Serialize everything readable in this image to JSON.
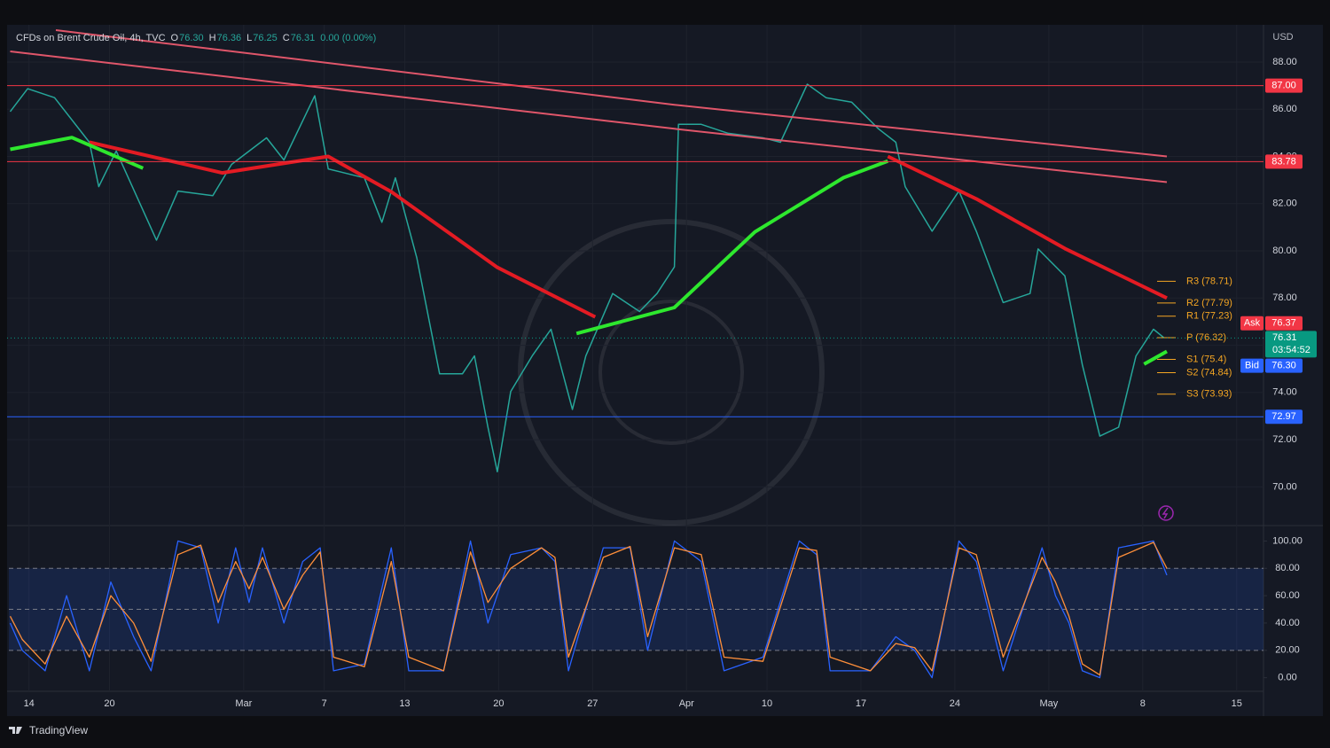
{
  "header": {
    "symbol": "CFDs on Brent Crude Oil, 4h, TVC",
    "ohlc": [
      {
        "key": "O",
        "value": "76.30"
      },
      {
        "key": "H",
        "value": "76.36"
      },
      {
        "key": "L",
        "value": "76.25"
      },
      {
        "key": "C",
        "value": "76.31"
      }
    ],
    "change": "0.00 (0.00%)",
    "currency": "USD"
  },
  "chart_data": [
    {
      "type": "line",
      "xlim": [
        -1.5,
        92
      ],
      "ylim": [
        68.4,
        89.5
      ],
      "xticks": [
        {
          "value": 0,
          "label": "14"
        },
        {
          "value": 6,
          "label": "20"
        },
        {
          "value": 16,
          "label": "Mar"
        },
        {
          "value": 22,
          "label": "7"
        },
        {
          "value": 28,
          "label": "13"
        },
        {
          "value": 35,
          "label": "20"
        },
        {
          "value": 42,
          "label": "27"
        },
        {
          "value": 49,
          "label": "Apr"
        },
        {
          "value": 55,
          "label": "10"
        },
        {
          "value": 62,
          "label": "17"
        },
        {
          "value": 69,
          "label": "24"
        },
        {
          "value": 76,
          "label": "May"
        },
        {
          "value": 83,
          "label": "8"
        },
        {
          "value": 90,
          "label": "15"
        }
      ],
      "yticks": [
        {
          "value": 70,
          "label": "70.00"
        },
        {
          "value": 72,
          "label": "72.00"
        },
        {
          "value": 74,
          "label": "74.00"
        },
        {
          "value": 76,
          "label": "76.00"
        },
        {
          "value": 78,
          "label": "78.00"
        },
        {
          "value": 80,
          "label": "80.00"
        },
        {
          "value": 82,
          "label": "82.00"
        },
        {
          "value": 84,
          "label": "84.00"
        },
        {
          "value": 86,
          "label": "86.00"
        },
        {
          "value": 88,
          "label": "88.00"
        }
      ],
      "grid": true,
      "series": [
        {
          "color": "#26a69a",
          "x": [
            -1.4,
            -0.1,
            1.9,
            4.5,
            5.2,
            6.5,
            9.5,
            11.1,
            13.7,
            15.1,
            17.7,
            19.0,
            21.3,
            22.3,
            25.0,
            26.3,
            27.3,
            28.9,
            30.6,
            32.3,
            33.2,
            34.2,
            34.9,
            35.9,
            37.5,
            38.9,
            40.5,
            41.5,
            43.5,
            45.5,
            46.8,
            48.1,
            48.4,
            50.1,
            52.1,
            54.7,
            56.0,
            58.0,
            59.4,
            61.3,
            63.3,
            64.6,
            65.3,
            67.3,
            69.3,
            70.6,
            72.6,
            74.6,
            75.2,
            77.2,
            78.5,
            79.8,
            81.2,
            82.5,
            83.8,
            84.6
          ],
          "values": [
            85.9,
            86.87,
            86.49,
            84.6,
            82.72,
            84.23,
            80.45,
            82.53,
            82.34,
            83.66,
            84.79,
            83.85,
            86.57,
            83.47,
            83.09,
            81.21,
            83.09,
            79.7,
            74.79,
            74.79,
            75.55,
            72.53,
            70.64,
            74.04,
            75.55,
            76.68,
            73.28,
            75.55,
            78.19,
            77.43,
            78.19,
            79.32,
            85.36,
            85.36,
            84.98,
            84.79,
            84.6,
            87.06,
            86.49,
            86.3,
            85.17,
            84.6,
            82.72,
            80.83,
            82.53,
            80.83,
            77.81,
            78.19,
            80.08,
            78.94,
            75.17,
            72.15,
            72.53,
            75.55,
            76.68,
            76.31
          ]
        },
        {
          "color": "#e0566a",
          "x": [
            2,
            48.1,
            84.8
          ],
          "values": [
            89.35,
            86.19,
            84.0
          ]
        },
        {
          "color": "#e0566a",
          "x": [
            -1.4,
            48.1,
            84.8
          ],
          "values": [
            88.45,
            85.17,
            82.91
          ]
        },
        {
          "color": "#e31b23",
          "x": [
            4.5,
            14.4,
            22.3,
            27.0,
            34.9,
            42.2,
            45.0,
            64.0,
            70.6,
            77.2,
            84.8
          ],
          "values": [
            84.6,
            83.3,
            84.0,
            82.5,
            79.3,
            77.2,
            null,
            84.0,
            82.2,
            80.1,
            78.0
          ]
        },
        {
          "color": "#2ee82e",
          "x": [
            -1.4,
            3.2,
            8.5,
            11.0,
            40.8,
            48.1,
            54.1,
            60.7,
            64.0,
            66.0,
            83.1,
            84.8
          ],
          "values": [
            84.3,
            84.8,
            83.5,
            null,
            76.5,
            77.6,
            80.8,
            83.1,
            83.8,
            null,
            75.2,
            75.74
          ]
        }
      ],
      "levels": [
        {
          "value": 87,
          "label": "87.00",
          "color": "#f23645"
        },
        {
          "value": 83.78,
          "label": "83.78",
          "color": "#f23645"
        },
        {
          "value": 72.97,
          "label": "72.97",
          "color": "#2962ff"
        }
      ],
      "pivots": [
        {
          "value": 78.71,
          "label": "R3 (78.71)"
        },
        {
          "value": 77.79,
          "label": "R2 (77.79)"
        },
        {
          "value": 77.23,
          "label": "R1 (77.23)"
        },
        {
          "value": 76.32,
          "label": "P (76.32)"
        },
        {
          "value": 75.4,
          "label": "S1 (75.4)"
        },
        {
          "value": 74.84,
          "label": "S2 (74.84)"
        },
        {
          "value": 73.93,
          "label": "S3 (73.93)"
        }
      ],
      "pivot_color": "#f5a623",
      "ask": {
        "name": "Ask",
        "value": 76.37,
        "label": "76.37",
        "color": "#f23645"
      },
      "last": {
        "value": 76.31,
        "label": "76.31",
        "countdown": "03:54:52",
        "color": "#089981"
      },
      "bid": {
        "name": "Bid",
        "value": 76.3,
        "label": "76.30",
        "color": "#2962ff"
      }
    },
    {
      "type": "line",
      "xlim": [
        -1.5,
        92
      ],
      "ylim": [
        -8,
        110
      ],
      "yticks": [
        {
          "value": 0,
          "label": "0.00"
        },
        {
          "value": 20,
          "label": "20.00"
        },
        {
          "value": 40,
          "label": "40.00"
        },
        {
          "value": 60,
          "label": "60.00"
        },
        {
          "value": 80,
          "label": "80.00"
        },
        {
          "value": 100,
          "label": "100.00"
        }
      ],
      "band": [
        20,
        80
      ],
      "dashed_levels": [
        20,
        50,
        80
      ],
      "x": [
        -1.4,
        -0.5,
        1.2,
        2.8,
        4.5,
        6.1,
        7.8,
        9.1,
        11.1,
        12.8,
        14.1,
        15.4,
        16.4,
        17.4,
        19.0,
        20.4,
        21.7,
        22.7,
        25.0,
        27.0,
        28.3,
        30.9,
        32.9,
        34.2,
        35.9,
        38.2,
        39.2,
        40.2,
        42.8,
        44.8,
        46.1,
        48.1,
        50.1,
        51.8,
        54.7,
        57.4,
        58.7,
        59.7,
        62.7,
        64.6,
        66.0,
        67.3,
        69.3,
        70.6,
        72.6,
        75.5,
        76.5,
        77.5,
        78.5,
        79.8,
        81.2,
        83.8,
        84.8
      ],
      "series": [
        {
          "color": "#2962ff",
          "values": [
            40,
            20,
            5,
            60,
            5,
            70,
            30,
            5,
            100,
            95,
            40,
            95,
            55,
            95,
            40,
            85,
            95,
            5,
            10,
            95,
            5,
            5,
            100,
            40,
            90,
            95,
            85,
            5,
            95,
            95,
            20,
            100,
            85,
            5,
            15,
            100,
            90,
            5,
            5,
            30,
            20,
            0,
            100,
            85,
            5,
            95,
            60,
            40,
            5,
            0,
            95,
            100,
            75
          ]
        },
        {
          "color": "#ff8f3a",
          "values": [
            45,
            28,
            10,
            45,
            15,
            60,
            40,
            12,
            90,
            97,
            55,
            85,
            65,
            88,
            50,
            75,
            92,
            15,
            8,
            85,
            15,
            5,
            92,
            55,
            80,
            95,
            88,
            15,
            88,
            96,
            30,
            95,
            90,
            15,
            12,
            95,
            93,
            15,
            5,
            25,
            22,
            5,
            95,
            90,
            15,
            88,
            70,
            45,
            10,
            2,
            88,
            99,
            80
          ]
        }
      ]
    }
  ],
  "footer": {
    "brand": "TradingView"
  }
}
